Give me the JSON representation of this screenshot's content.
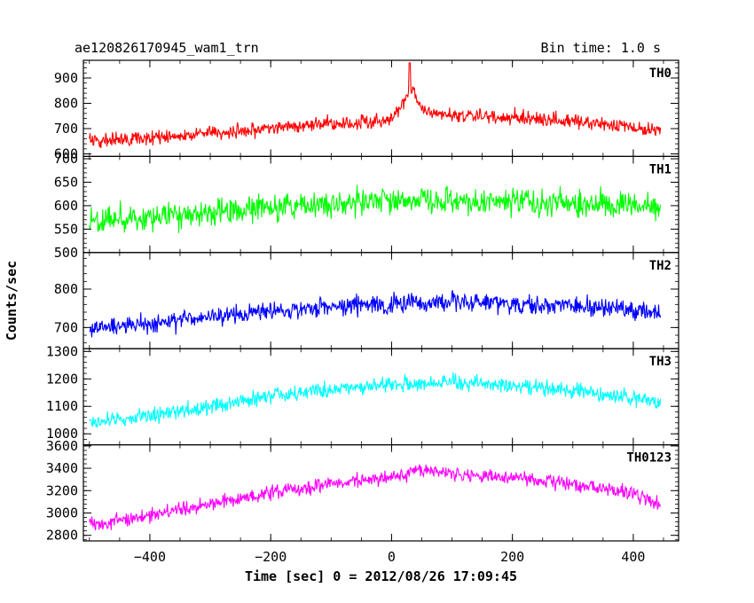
{
  "header": {
    "left": "ae120826170945_wam1_trn",
    "right": "Bin time: 1.0 s"
  },
  "chart_data": {
    "type": "line",
    "title": "ae120826170945_wam1_trn",
    "bin_time_label": "Bin time: 1.0 s",
    "xlabel": "Time [sec] 0 = 2012/08/26 17:09:45",
    "ylabel": "Counts/sec",
    "xlim": [
      -510,
      475
    ],
    "x_range": [
      -500,
      445
    ],
    "x_ticks": [
      -400,
      -200,
      0,
      200,
      400
    ],
    "x_tick_labels": [
      "−400",
      "−200",
      "0",
      "200",
      "400"
    ],
    "grid": false,
    "panels": [
      {
        "name": "TH0",
        "color": "#ff0000",
        "ylim": [
          590,
          970
        ],
        "y_ticks": [
          600,
          700,
          800,
          900
        ],
        "y_tick_labels": [
          "600",
          "700",
          "800",
          "900"
        ],
        "trend": [
          [
            -500,
            650
          ],
          [
            -400,
            660
          ],
          [
            -300,
            680
          ],
          [
            -200,
            700
          ],
          [
            -100,
            720
          ],
          [
            -20,
            730
          ],
          [
            0,
            745
          ],
          [
            20,
            800
          ],
          [
            30,
            870
          ],
          [
            45,
            800
          ],
          [
            60,
            760
          ],
          [
            100,
            755
          ],
          [
            200,
            745
          ],
          [
            300,
            730
          ],
          [
            400,
            705
          ],
          [
            445,
            690
          ]
        ],
        "noise_amplitude": 40,
        "peak": {
          "x": 30,
          "y": 960
        }
      },
      {
        "name": "TH1",
        "color": "#00ff00",
        "ylim": [
          500,
          705
        ],
        "y_ticks": [
          500,
          550,
          600,
          650,
          700
        ],
        "y_tick_labels": [
          "500",
          "550",
          "600",
          "650",
          "700"
        ],
        "trend": [
          [
            -500,
            565
          ],
          [
            -400,
            575
          ],
          [
            -300,
            585
          ],
          [
            -200,
            595
          ],
          [
            -100,
            605
          ],
          [
            0,
            610
          ],
          [
            100,
            612
          ],
          [
            200,
            610
          ],
          [
            300,
            605
          ],
          [
            400,
            600
          ],
          [
            445,
            595
          ]
        ],
        "noise_amplitude": 38
      },
      {
        "name": "TH2",
        "color": "#0000ff",
        "ylim": [
          645,
          895
        ],
        "y_ticks": [
          700,
          800
        ],
        "y_tick_labels": [
          "700",
          "800"
        ],
        "trend": [
          [
            -500,
            695
          ],
          [
            -400,
            710
          ],
          [
            -300,
            728
          ],
          [
            -200,
            745
          ],
          [
            -100,
            755
          ],
          [
            0,
            760
          ],
          [
            100,
            765
          ],
          [
            200,
            763
          ],
          [
            300,
            755
          ],
          [
            400,
            745
          ],
          [
            445,
            740
          ]
        ],
        "noise_amplitude": 35
      },
      {
        "name": "TH3",
        "color": "#00ffff",
        "ylim": [
          960,
          1310
        ],
        "y_ticks": [
          1000,
          1100,
          1200,
          1300
        ],
        "y_tick_labels": [
          "1000",
          "1100",
          "1200",
          "1300"
        ],
        "trend": [
          [
            -500,
            1040
          ],
          [
            -400,
            1070
          ],
          [
            -300,
            1100
          ],
          [
            -200,
            1135
          ],
          [
            -100,
            1160
          ],
          [
            0,
            1180
          ],
          [
            100,
            1185
          ],
          [
            200,
            1175
          ],
          [
            300,
            1155
          ],
          [
            400,
            1130
          ],
          [
            445,
            1110
          ]
        ],
        "noise_amplitude": 42
      },
      {
        "name": "TH0123",
        "color": "#ff00ff",
        "ylim": [
          2750,
          3610
        ],
        "y_ticks": [
          2800,
          3000,
          3200,
          3400,
          3600
        ],
        "y_tick_labels": [
          "2800",
          "3000",
          "3200",
          "3400",
          "3600"
        ],
        "trend": [
          [
            -500,
            2900
          ],
          [
            -400,
            2980
          ],
          [
            -300,
            3080
          ],
          [
            -200,
            3180
          ],
          [
            -100,
            3260
          ],
          [
            0,
            3320
          ],
          [
            40,
            3380
          ],
          [
            100,
            3350
          ],
          [
            200,
            3320
          ],
          [
            300,
            3260
          ],
          [
            400,
            3180
          ],
          [
            445,
            3070
          ]
        ],
        "noise_amplitude": 85
      }
    ]
  }
}
